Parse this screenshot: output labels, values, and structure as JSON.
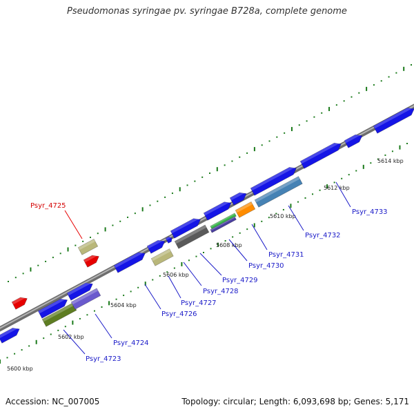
{
  "title": "Pseudomonas syringae pv. syringae B728a, complete genome",
  "footer": {
    "accession": "Accession: NC_007005",
    "summary": "Topology: circular; Length: 6,093,698 bp; Genes: 5,171"
  },
  "colors": {
    "backbone": "#8c8c8c",
    "tick": "#1a7a1a",
    "gene_forward": "#1515e6",
    "highlight": "#e60000",
    "label": "#1a1ac8",
    "highlight_label": "#d40000"
  },
  "scale_labels": [
    "5600 kbp",
    "5602 kbp",
    "5604 kbp",
    "5606 kbp",
    "5608 kbp",
    "5610 kbp",
    "5612 kbp",
    "5614 kbp"
  ],
  "gene_labels": [
    {
      "id": "Psyr_4723",
      "highlight": false
    },
    {
      "id": "Psyr_4724",
      "highlight": false
    },
    {
      "id": "Psyr_4725",
      "highlight": true
    },
    {
      "id": "Psyr_4726",
      "highlight": false
    },
    {
      "id": "Psyr_4727",
      "highlight": false
    },
    {
      "id": "Psyr_4728",
      "highlight": false
    },
    {
      "id": "Psyr_4729",
      "highlight": false
    },
    {
      "id": "Psyr_4730",
      "highlight": false
    },
    {
      "id": "Psyr_4731",
      "highlight": false
    },
    {
      "id": "Psyr_4732",
      "highlight": false
    },
    {
      "id": "Psyr_4733",
      "highlight": false
    }
  ]
}
